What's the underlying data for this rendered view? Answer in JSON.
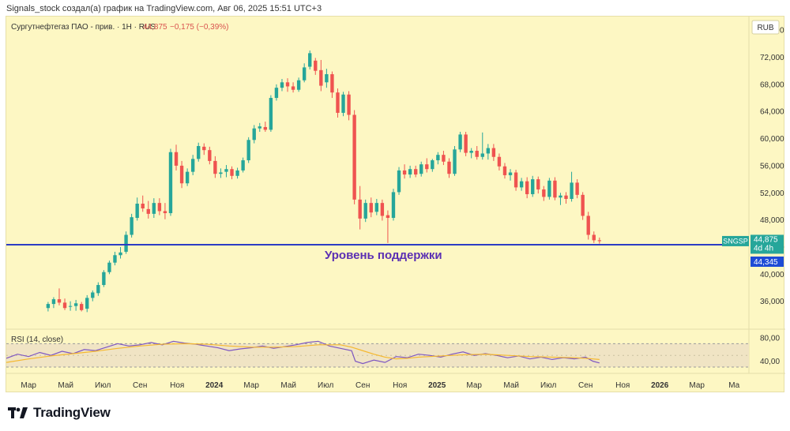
{
  "header": {
    "caption": "Signals_stock создал(а) график на TradingView.com, Авг 06, 2025 15:51 UTC+3"
  },
  "legend": {
    "symbol": "Сургутнефтегаз ПАО - прив. · 1Н · RUS",
    "price": "44,875",
    "change": "−0,175 (−0,39%)"
  },
  "currency_label": "RUB",
  "ticker_tag": "SNGSP",
  "last_price_label": "44,875",
  "countdown_label": "4d 4h",
  "support_price_label": "44,345",
  "support_caption": "Уровень поддержки",
  "rsi_title": "RSI (14, close)",
  "footer": {
    "brand": "TradingView"
  },
  "colors": {
    "background": "#fdf7c3",
    "up": "#26a69a",
    "down": "#ef5350",
    "support_line": "#2b3cc4",
    "support_text": "#5b2fb3",
    "rsi_line": "#7e57c2",
    "rsi_ma": "#f5b82e",
    "ticker_tag": "#26a69a",
    "support_tag": "#1e4bd6"
  },
  "chart_data": [
    {
      "type": "candlestick",
      "title": "Сургутнефтегаз ПАО - прив. · 1Н · RUS",
      "ylabel": "RUB",
      "ylim": [
        32,
        78
      ],
      "y_ticks": [
        "76,000",
        "72,000",
        "68,000",
        "64,000",
        "60,000",
        "56,000",
        "52,000",
        "48,000",
        "44,000",
        "40,000",
        "36,000"
      ],
      "y_tick_values": [
        76,
        72,
        68,
        64,
        60,
        56,
        52,
        48,
        44,
        40,
        36
      ],
      "x_ticks": [
        "Мар",
        "Май",
        "Июл",
        "Сен",
        "Ноя",
        "2024",
        "Мар",
        "Май",
        "Июл",
        "Сен",
        "Ноя",
        "2025",
        "Мар",
        "Май",
        "Июл",
        "Сен",
        "Ноя",
        "2026",
        "Мар",
        "Ма"
      ],
      "x_tick_bold": [
        false,
        false,
        false,
        false,
        false,
        true,
        false,
        false,
        false,
        false,
        false,
        true,
        false,
        false,
        false,
        false,
        false,
        true,
        false,
        false
      ],
      "x_tick_pos": [
        0,
        2,
        4,
        6,
        8,
        10,
        12,
        14,
        16,
        18,
        20,
        22,
        24,
        26,
        28,
        30,
        32,
        34,
        36,
        38
      ],
      "x_domain": [
        -1.2,
        38.8
      ],
      "support_level": 44.345,
      "last_price": 44.875,
      "candles": [
        {
          "t": 1.05,
          "o": 35.0,
          "h": 35.9,
          "l": 34.5,
          "c": 35.6
        },
        {
          "t": 1.35,
          "o": 35.6,
          "h": 36.6,
          "l": 35.0,
          "c": 36.3
        },
        {
          "t": 1.65,
          "o": 36.3,
          "h": 37.9,
          "l": 35.4,
          "c": 35.8
        },
        {
          "t": 1.95,
          "o": 35.8,
          "h": 36.4,
          "l": 34.7,
          "c": 35.0
        },
        {
          "t": 2.25,
          "o": 35.2,
          "h": 36.0,
          "l": 34.6,
          "c": 35.3
        },
        {
          "t": 2.55,
          "o": 35.3,
          "h": 36.2,
          "l": 34.6,
          "c": 35.7
        },
        {
          "t": 2.85,
          "o": 35.6,
          "h": 35.9,
          "l": 34.5,
          "c": 34.7
        },
        {
          "t": 3.15,
          "o": 34.9,
          "h": 36.9,
          "l": 34.4,
          "c": 36.5
        },
        {
          "t": 3.45,
          "o": 36.5,
          "h": 37.6,
          "l": 36.0,
          "c": 37.3
        },
        {
          "t": 3.75,
          "o": 37.2,
          "h": 38.8,
          "l": 36.8,
          "c": 38.4
        },
        {
          "t": 4.05,
          "o": 38.4,
          "h": 40.6,
          "l": 38.1,
          "c": 40.3
        },
        {
          "t": 4.35,
          "o": 40.3,
          "h": 42.0,
          "l": 40.0,
          "c": 41.7
        },
        {
          "t": 4.65,
          "o": 41.7,
          "h": 43.3,
          "l": 41.3,
          "c": 42.8
        },
        {
          "t": 4.95,
          "o": 42.8,
          "h": 44.0,
          "l": 42.3,
          "c": 43.2
        },
        {
          "t": 5.25,
          "o": 43.3,
          "h": 46.3,
          "l": 43.0,
          "c": 45.8
        },
        {
          "t": 5.55,
          "o": 45.8,
          "h": 48.9,
          "l": 45.4,
          "c": 48.4
        },
        {
          "t": 5.85,
          "o": 48.3,
          "h": 51.3,
          "l": 47.9,
          "c": 50.4
        },
        {
          "t": 6.15,
          "o": 50.4,
          "h": 51.6,
          "l": 49.2,
          "c": 49.7
        },
        {
          "t": 6.45,
          "o": 49.6,
          "h": 50.8,
          "l": 48.2,
          "c": 48.9
        },
        {
          "t": 6.75,
          "o": 48.9,
          "h": 51.2,
          "l": 48.3,
          "c": 50.5
        },
        {
          "t": 7.05,
          "o": 50.5,
          "h": 51.2,
          "l": 48.7,
          "c": 49.3
        },
        {
          "t": 7.35,
          "o": 49.3,
          "h": 50.5,
          "l": 48.1,
          "c": 49.0
        },
        {
          "t": 7.65,
          "o": 49.0,
          "h": 58.5,
          "l": 48.6,
          "c": 58.0
        },
        {
          "t": 7.95,
          "o": 58.0,
          "h": 59.1,
          "l": 55.3,
          "c": 56.0
        },
        {
          "t": 8.25,
          "o": 56.0,
          "h": 56.7,
          "l": 52.7,
          "c": 53.4
        },
        {
          "t": 8.55,
          "o": 53.4,
          "h": 55.6,
          "l": 53.0,
          "c": 55.1
        },
        {
          "t": 8.85,
          "o": 55.1,
          "h": 57.6,
          "l": 54.6,
          "c": 57.0
        },
        {
          "t": 9.15,
          "o": 57.0,
          "h": 59.4,
          "l": 56.6,
          "c": 58.9
        },
        {
          "t": 9.45,
          "o": 58.8,
          "h": 59.3,
          "l": 57.6,
          "c": 58.3
        },
        {
          "t": 9.75,
          "o": 58.3,
          "h": 58.8,
          "l": 56.2,
          "c": 56.7
        },
        {
          "t": 10.05,
          "o": 56.7,
          "h": 57.4,
          "l": 54.2,
          "c": 54.8
        },
        {
          "t": 10.35,
          "o": 54.8,
          "h": 55.6,
          "l": 54.2,
          "c": 55.0
        },
        {
          "t": 10.65,
          "o": 55.1,
          "h": 56.1,
          "l": 54.3,
          "c": 55.5
        },
        {
          "t": 10.95,
          "o": 55.5,
          "h": 55.9,
          "l": 54.0,
          "c": 54.5
        },
        {
          "t": 11.25,
          "o": 54.5,
          "h": 55.7,
          "l": 54.1,
          "c": 55.3
        },
        {
          "t": 11.55,
          "o": 55.3,
          "h": 57.2,
          "l": 55.0,
          "c": 56.8
        },
        {
          "t": 11.85,
          "o": 56.8,
          "h": 60.2,
          "l": 56.4,
          "c": 59.8
        },
        {
          "t": 12.15,
          "o": 59.8,
          "h": 62.0,
          "l": 59.3,
          "c": 61.5
        },
        {
          "t": 12.45,
          "o": 61.5,
          "h": 62.3,
          "l": 61.0,
          "c": 61.8
        },
        {
          "t": 12.75,
          "o": 61.7,
          "h": 62.5,
          "l": 61.0,
          "c": 61.3
        },
        {
          "t": 13.05,
          "o": 61.3,
          "h": 66.4,
          "l": 61.0,
          "c": 66.0
        },
        {
          "t": 13.35,
          "o": 66.0,
          "h": 68.0,
          "l": 65.6,
          "c": 67.5
        },
        {
          "t": 13.65,
          "o": 67.5,
          "h": 68.8,
          "l": 67.0,
          "c": 68.3
        },
        {
          "t": 13.95,
          "o": 68.3,
          "h": 68.9,
          "l": 66.9,
          "c": 67.7
        },
        {
          "t": 14.25,
          "o": 67.7,
          "h": 68.3,
          "l": 66.8,
          "c": 67.2
        },
        {
          "t": 14.55,
          "o": 67.2,
          "h": 69.0,
          "l": 66.9,
          "c": 68.6
        },
        {
          "t": 14.85,
          "o": 68.6,
          "h": 71.1,
          "l": 68.3,
          "c": 70.5
        },
        {
          "t": 15.15,
          "o": 70.6,
          "h": 73.0,
          "l": 70.2,
          "c": 72.6
        },
        {
          "t": 15.45,
          "o": 71.5,
          "h": 71.9,
          "l": 69.4,
          "c": 70.0
        },
        {
          "t": 15.75,
          "o": 70.1,
          "h": 71.6,
          "l": 67.0,
          "c": 67.8
        },
        {
          "t": 16.05,
          "o": 68.3,
          "h": 70.3,
          "l": 67.5,
          "c": 69.5
        },
        {
          "t": 16.35,
          "o": 69.5,
          "h": 69.9,
          "l": 66.0,
          "c": 66.8
        },
        {
          "t": 16.65,
          "o": 66.8,
          "h": 67.4,
          "l": 63.1,
          "c": 63.8
        },
        {
          "t": 16.95,
          "o": 63.8,
          "h": 66.9,
          "l": 63.3,
          "c": 66.5
        },
        {
          "t": 17.25,
          "o": 66.5,
          "h": 67.0,
          "l": 62.7,
          "c": 63.5
        },
        {
          "t": 17.55,
          "o": 63.5,
          "h": 64.2,
          "l": 50.3,
          "c": 51.0
        },
        {
          "t": 17.85,
          "o": 51.0,
          "h": 53.0,
          "l": 46.6,
          "c": 48.2
        },
        {
          "t": 18.15,
          "o": 48.2,
          "h": 51.0,
          "l": 47.7,
          "c": 50.5
        },
        {
          "t": 18.45,
          "o": 50.5,
          "h": 51.3,
          "l": 48.4,
          "c": 49.1
        },
        {
          "t": 18.75,
          "o": 49.2,
          "h": 51.1,
          "l": 48.7,
          "c": 50.5
        },
        {
          "t": 19.05,
          "o": 50.5,
          "h": 51.0,
          "l": 47.9,
          "c": 48.6
        },
        {
          "t": 19.35,
          "o": 48.7,
          "h": 49.4,
          "l": 44.6,
          "c": 48.3
        },
        {
          "t": 19.65,
          "o": 48.3,
          "h": 52.6,
          "l": 47.9,
          "c": 52.1
        },
        {
          "t": 19.95,
          "o": 52.1,
          "h": 55.8,
          "l": 51.7,
          "c": 55.3
        },
        {
          "t": 20.25,
          "o": 55.3,
          "h": 56.2,
          "l": 54.1,
          "c": 54.7
        },
        {
          "t": 20.55,
          "o": 54.7,
          "h": 56.0,
          "l": 54.2,
          "c": 55.5
        },
        {
          "t": 20.85,
          "o": 55.5,
          "h": 56.0,
          "l": 54.3,
          "c": 54.7
        },
        {
          "t": 21.15,
          "o": 54.8,
          "h": 56.6,
          "l": 54.4,
          "c": 56.2
        },
        {
          "t": 21.45,
          "o": 56.2,
          "h": 57.1,
          "l": 55.0,
          "c": 55.5
        },
        {
          "t": 21.75,
          "o": 55.5,
          "h": 57.0,
          "l": 55.1,
          "c": 56.8
        },
        {
          "t": 22.05,
          "o": 56.8,
          "h": 58.0,
          "l": 56.2,
          "c": 57.6
        },
        {
          "t": 22.35,
          "o": 57.6,
          "h": 58.2,
          "l": 56.1,
          "c": 56.6
        },
        {
          "t": 22.65,
          "o": 56.6,
          "h": 57.1,
          "l": 54.2,
          "c": 54.8
        },
        {
          "t": 22.95,
          "o": 54.8,
          "h": 58.9,
          "l": 54.5,
          "c": 58.4
        },
        {
          "t": 23.25,
          "o": 58.4,
          "h": 61.0,
          "l": 58.0,
          "c": 60.6
        },
        {
          "t": 23.55,
          "o": 60.6,
          "h": 61.0,
          "l": 57.4,
          "c": 57.9
        },
        {
          "t": 23.85,
          "o": 57.9,
          "h": 58.6,
          "l": 57.1,
          "c": 58.2
        },
        {
          "t": 24.15,
          "o": 58.2,
          "h": 58.9,
          "l": 56.9,
          "c": 57.3
        },
        {
          "t": 24.45,
          "o": 57.3,
          "h": 60.9,
          "l": 56.9,
          "c": 57.8
        },
        {
          "t": 24.75,
          "o": 57.8,
          "h": 59.2,
          "l": 56.9,
          "c": 58.6
        },
        {
          "t": 25.05,
          "o": 58.6,
          "h": 59.2,
          "l": 56.7,
          "c": 57.3
        },
        {
          "t": 25.35,
          "o": 57.3,
          "h": 57.8,
          "l": 55.3,
          "c": 55.9
        },
        {
          "t": 25.65,
          "o": 55.9,
          "h": 56.4,
          "l": 54.1,
          "c": 54.6
        },
        {
          "t": 25.95,
          "o": 54.6,
          "h": 55.5,
          "l": 53.8,
          "c": 55.0
        },
        {
          "t": 26.25,
          "o": 55.0,
          "h": 55.4,
          "l": 52.3,
          "c": 52.8
        },
        {
          "t": 26.55,
          "o": 52.8,
          "h": 54.2,
          "l": 52.3,
          "c": 53.7
        },
        {
          "t": 26.85,
          "o": 53.7,
          "h": 54.3,
          "l": 51.2,
          "c": 51.8
        },
        {
          "t": 27.15,
          "o": 51.8,
          "h": 54.5,
          "l": 51.4,
          "c": 54.0
        },
        {
          "t": 27.45,
          "o": 54.0,
          "h": 54.4,
          "l": 51.9,
          "c": 52.5
        },
        {
          "t": 27.75,
          "o": 52.5,
          "h": 53.0,
          "l": 50.8,
          "c": 51.4
        },
        {
          "t": 28.05,
          "o": 51.4,
          "h": 54.2,
          "l": 51.0,
          "c": 53.8
        },
        {
          "t": 28.35,
          "o": 53.8,
          "h": 54.3,
          "l": 50.9,
          "c": 51.3
        },
        {
          "t": 28.65,
          "o": 51.3,
          "h": 52.0,
          "l": 50.2,
          "c": 51.6
        },
        {
          "t": 28.95,
          "o": 51.6,
          "h": 52.1,
          "l": 50.4,
          "c": 51.1
        },
        {
          "t": 29.25,
          "o": 51.1,
          "h": 55.1,
          "l": 50.7,
          "c": 53.5
        },
        {
          "t": 29.55,
          "o": 53.5,
          "h": 54.0,
          "l": 51.2,
          "c": 51.7
        },
        {
          "t": 29.85,
          "o": 51.7,
          "h": 52.1,
          "l": 48.0,
          "c": 48.6
        },
        {
          "t": 30.15,
          "o": 48.6,
          "h": 49.2,
          "l": 45.1,
          "c": 45.8
        },
        {
          "t": 30.45,
          "o": 45.8,
          "h": 46.3,
          "l": 44.6,
          "c": 45.0
        },
        {
          "t": 30.75,
          "o": 45.0,
          "h": 45.4,
          "l": 44.5,
          "c": 44.875
        }
      ]
    },
    {
      "type": "line",
      "title": "RSI (14, close)",
      "ylim": [
        22,
        92
      ],
      "y_ticks": [
        "80,00",
        "40,00"
      ],
      "y_tick_values": [
        80,
        40
      ],
      "upper_band": 70,
      "lower_band": 30,
      "series": [
        {
          "x": [
            -1.2,
            -0.6,
            0.0,
            0.6,
            1.2,
            1.8,
            2.4,
            3.0,
            3.6,
            4.2,
            4.8,
            5.4,
            6.0,
            6.6,
            7.2,
            7.8,
            8.4,
            9.0,
            9.6,
            10.2,
            10.8,
            11.4,
            12.0,
            12.6,
            13.2,
            13.8,
            14.4,
            15.0,
            15.6,
            16.2,
            16.8,
            17.4,
            17.6,
            18.0,
            18.6,
            19.2,
            19.8,
            20.4,
            21.0,
            21.6,
            22.2,
            22.8,
            23.4,
            24.0,
            24.6,
            25.2,
            25.8,
            26.4,
            27.0,
            27.6,
            28.2,
            28.8,
            29.4,
            30.0,
            30.4,
            30.75
          ],
          "y": [
            45,
            52,
            48,
            55,
            50,
            57,
            53,
            60,
            58,
            64,
            70,
            66,
            68,
            72,
            68,
            74,
            71,
            69,
            66,
            63,
            58,
            61,
            63,
            66,
            62,
            65,
            68,
            72,
            74,
            66,
            62,
            58,
            40,
            36,
            42,
            38,
            48,
            46,
            52,
            50,
            47,
            52,
            56,
            50,
            53,
            50,
            46,
            49,
            44,
            47,
            43,
            46,
            44,
            47,
            40,
            37
          ]
        },
        {
          "x": [
            -1.2,
            0.0,
            1.2,
            2.4,
            3.6,
            4.8,
            6.0,
            7.2,
            8.4,
            9.6,
            10.8,
            12.0,
            13.2,
            14.4,
            15.6,
            16.8,
            17.4,
            18.0,
            18.6,
            19.2,
            19.8,
            20.4,
            21.0,
            22.2,
            23.4,
            24.6,
            25.8,
            27.0,
            28.2,
            29.4,
            30.0,
            30.75
          ],
          "y": [
            38,
            44,
            49,
            53,
            57,
            62,
            66,
            69,
            70,
            69,
            66,
            64,
            64,
            65,
            68,
            68,
            64,
            58,
            52,
            47,
            44,
            45,
            47,
            49,
            51,
            52,
            50,
            48,
            47,
            46,
            45,
            43
          ]
        }
      ]
    }
  ]
}
